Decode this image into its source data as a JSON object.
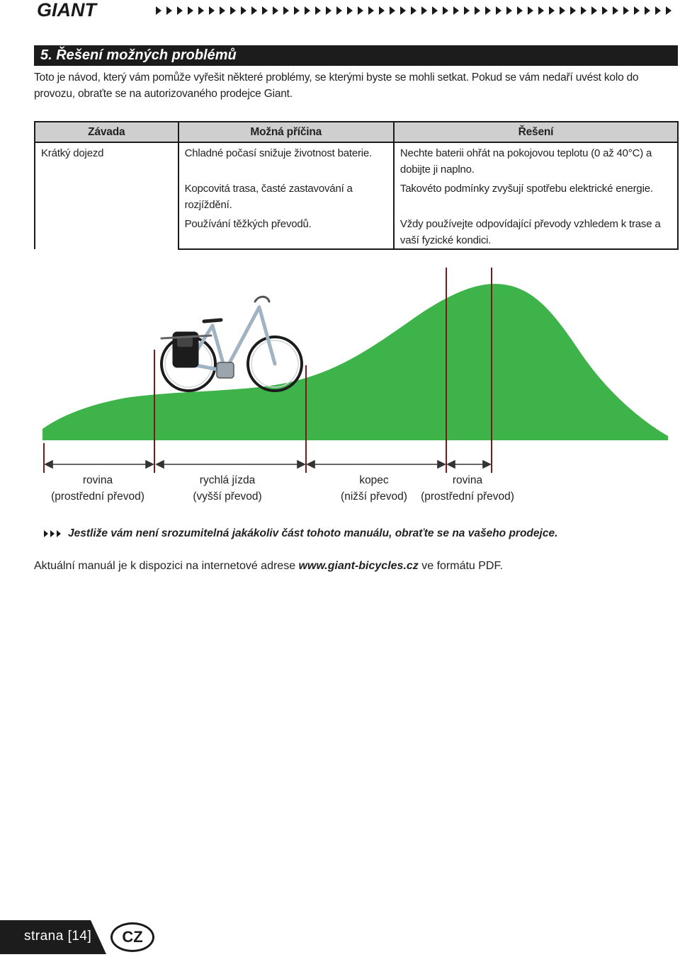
{
  "header": {
    "brand": "GIANT",
    "arrow_icon": "chevron-right-icon"
  },
  "section": {
    "title": "5. Řešení možných problémů",
    "intro": "Toto je návod, který vám pomůže vyřešit některé problémy, se kterými byste se mohli setkat. Pokud se vám nedaří uvést kolo do provozu, obraťte se na autorizovaného prodejce Giant."
  },
  "table": {
    "headers": [
      "Závada",
      "Možná příčina",
      "Řešení"
    ],
    "rows": [
      {
        "fault": "Krátký dojezd",
        "cause": "Chladné počasí snižuje životnost baterie.",
        "solution": "Nechte baterii ohřát na pokojovou teplotu (0 až 40°C) a dobijte ji naplno."
      },
      {
        "fault": "",
        "cause": "Kopcovitá trasa, časté zastavování a rozjíždění.",
        "solution": "Takovéto podmínky zvyšují spotřebu elektrické energie."
      },
      {
        "fault": "",
        "cause": "Používání těžkých převodů.",
        "solution": "Vždy používejte odpovídající převody vzhledem k trase a vaší fyzické kondici."
      }
    ]
  },
  "diagram": {
    "icon": "e-bike-on-hill-illustration",
    "hill_color": "#3db34a",
    "segments": [
      {
        "line1": "rovina",
        "line2": "(prostřední převod)"
      },
      {
        "line1": "rychlá jízda",
        "line2": "(vyšší převod)"
      },
      {
        "line1": "kopec",
        "line2": "(nižší převod)"
      },
      {
        "line1": "rovina",
        "line2": "(prostřední převod)"
      }
    ]
  },
  "notice": {
    "text": "Jestliže vám není srozumitelná jakákoliv část tohoto manuálu, obraťte se na vašeho prodejce."
  },
  "availability": {
    "prefix": "Aktuální manuál je k dispozici na internetové adrese ",
    "url": "www.giant-bicycles.cz",
    "suffix": " ve formátu PDF."
  },
  "footer": {
    "page_label": "strana [14]",
    "language": "CZ"
  }
}
